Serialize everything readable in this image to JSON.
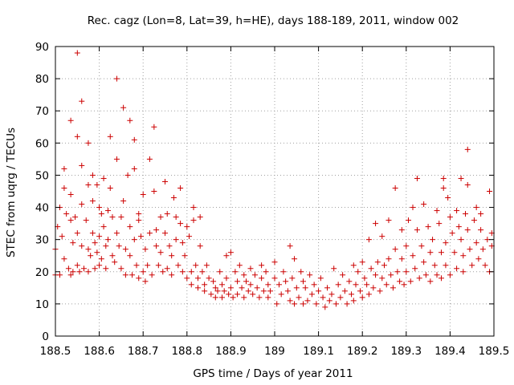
{
  "chart_data": {
    "type": "scatter",
    "title": "Rec. cagz (Lon=8, Lat=39, h=HE), days 188-189, 2011, window 002",
    "xlabel": "GPS time / Days of year 2011",
    "ylabel": "STEC from uqrg / TECUs",
    "xlim": [
      188.5,
      189.5
    ],
    "ylim": [
      0,
      90
    ],
    "xticks": [
      188.5,
      188.6,
      188.7,
      188.8,
      188.9,
      189,
      189.1,
      189.2,
      189.3,
      189.4,
      189.5
    ],
    "xtick_labels": [
      "188.5",
      "188.6",
      "188.7",
      "188.8",
      "188.9",
      "189",
      "189.1",
      "189.2",
      "189.3",
      "189.4",
      "189.5"
    ],
    "yticks": [
      0,
      10,
      20,
      30,
      40,
      50,
      60,
      70,
      80,
      90
    ],
    "ytick_labels": [
      "0",
      "10",
      "20",
      "30",
      "40",
      "50",
      "60",
      "70",
      "80",
      "90"
    ],
    "grid": true,
    "marker": "+",
    "color": "#cc0000",
    "series": [
      {
        "name": "STEC",
        "points": [
          [
            188.5,
            27
          ],
          [
            188.5,
            19
          ],
          [
            188.505,
            34
          ],
          [
            188.51,
            40
          ],
          [
            188.51,
            19
          ],
          [
            188.515,
            31
          ],
          [
            188.52,
            46
          ],
          [
            188.52,
            52
          ],
          [
            188.52,
            24
          ],
          [
            188.525,
            38
          ],
          [
            188.53,
            21
          ],
          [
            188.535,
            67
          ],
          [
            188.535,
            44
          ],
          [
            188.535,
            36
          ],
          [
            188.535,
            19
          ],
          [
            188.54,
            29
          ],
          [
            188.54,
            20
          ],
          [
            188.545,
            37
          ],
          [
            188.55,
            88
          ],
          [
            188.55,
            62
          ],
          [
            188.55,
            32
          ],
          [
            188.55,
            22
          ],
          [
            188.555,
            20
          ],
          [
            188.56,
            73
          ],
          [
            188.56,
            53
          ],
          [
            188.56,
            41
          ],
          [
            188.56,
            28
          ],
          [
            188.565,
            21
          ],
          [
            188.57,
            36
          ],
          [
            188.575,
            60
          ],
          [
            188.575,
            47
          ],
          [
            188.575,
            27
          ],
          [
            188.575,
            20
          ],
          [
            188.58,
            25
          ],
          [
            188.585,
            50
          ],
          [
            188.585,
            42
          ],
          [
            188.585,
            32
          ],
          [
            188.59,
            29
          ],
          [
            188.59,
            21
          ],
          [
            188.595,
            47
          ],
          [
            188.595,
            26
          ],
          [
            188.6,
            40
          ],
          [
            188.6,
            31
          ],
          [
            188.6,
            22
          ],
          [
            188.605,
            38
          ],
          [
            188.605,
            24
          ],
          [
            188.61,
            49
          ],
          [
            188.61,
            34
          ],
          [
            188.615,
            28
          ],
          [
            188.615,
            21
          ],
          [
            188.62,
            39
          ],
          [
            188.62,
            30
          ],
          [
            188.625,
            62
          ],
          [
            188.625,
            46
          ],
          [
            188.63,
            37
          ],
          [
            188.63,
            25
          ],
          [
            188.635,
            23
          ],
          [
            188.64,
            80
          ],
          [
            188.64,
            55
          ],
          [
            188.64,
            32
          ],
          [
            188.645,
            28
          ],
          [
            188.65,
            37
          ],
          [
            188.65,
            21
          ],
          [
            188.655,
            71
          ],
          [
            188.655,
            42
          ],
          [
            188.66,
            27
          ],
          [
            188.66,
            19
          ],
          [
            188.665,
            50
          ],
          [
            188.67,
            67
          ],
          [
            188.67,
            34
          ],
          [
            188.67,
            25
          ],
          [
            188.675,
            19
          ],
          [
            188.68,
            61
          ],
          [
            188.68,
            52
          ],
          [
            188.68,
            30
          ],
          [
            188.685,
            22
          ],
          [
            188.69,
            38
          ],
          [
            188.69,
            36
          ],
          [
            188.69,
            18
          ],
          [
            188.695,
            31
          ],
          [
            188.7,
            44
          ],
          [
            188.7,
            20
          ],
          [
            188.705,
            27
          ],
          [
            188.705,
            17
          ],
          [
            188.71,
            22
          ],
          [
            188.715,
            55
          ],
          [
            188.715,
            32
          ],
          [
            188.72,
            19
          ],
          [
            188.725,
            65
          ],
          [
            188.725,
            45
          ],
          [
            188.73,
            33
          ],
          [
            188.73,
            28
          ],
          [
            188.735,
            22
          ],
          [
            188.74,
            37
          ],
          [
            188.74,
            26
          ],
          [
            188.745,
            20
          ],
          [
            188.75,
            48
          ],
          [
            188.75,
            32
          ],
          [
            188.755,
            38
          ],
          [
            188.755,
            21
          ],
          [
            188.76,
            28
          ],
          [
            188.765,
            25
          ],
          [
            188.765,
            19
          ],
          [
            188.77,
            43
          ],
          [
            188.775,
            37
          ],
          [
            188.775,
            30
          ],
          [
            188.78,
            22
          ],
          [
            188.785,
            46
          ],
          [
            188.785,
            35
          ],
          [
            188.79,
            29
          ],
          [
            188.79,
            20
          ],
          [
            188.795,
            25
          ],
          [
            188.8,
            34
          ],
          [
            188.8,
            18
          ],
          [
            188.805,
            31
          ],
          [
            188.81,
            20
          ],
          [
            188.81,
            16
          ],
          [
            188.815,
            40
          ],
          [
            188.815,
            36
          ],
          [
            188.82,
            22
          ],
          [
            188.825,
            18
          ],
          [
            188.825,
            15
          ],
          [
            188.83,
            37
          ],
          [
            188.83,
            28
          ],
          [
            188.835,
            20
          ],
          [
            188.84,
            16
          ],
          [
            188.84,
            14
          ],
          [
            188.845,
            22
          ],
          [
            188.85,
            18
          ],
          [
            188.855,
            13
          ],
          [
            188.86,
            17
          ],
          [
            188.865,
            15
          ],
          [
            188.865,
            12
          ],
          [
            188.87,
            14
          ],
          [
            188.875,
            20
          ],
          [
            188.88,
            16
          ],
          [
            188.88,
            12
          ],
          [
            188.885,
            14
          ],
          [
            188.89,
            25
          ],
          [
            188.89,
            18
          ],
          [
            188.895,
            13
          ],
          [
            188.9,
            26
          ],
          [
            188.9,
            15
          ],
          [
            188.905,
            12
          ],
          [
            188.91,
            20
          ],
          [
            188.915,
            17
          ],
          [
            188.915,
            13
          ],
          [
            188.92,
            22
          ],
          [
            188.925,
            15
          ],
          [
            188.93,
            19
          ],
          [
            188.93,
            12
          ],
          [
            188.935,
            17
          ],
          [
            188.94,
            14
          ],
          [
            188.945,
            21
          ],
          [
            188.945,
            16
          ],
          [
            188.95,
            13
          ],
          [
            188.955,
            19
          ],
          [
            188.96,
            15
          ],
          [
            188.965,
            12
          ],
          [
            188.97,
            22
          ],
          [
            188.97,
            18
          ],
          [
            188.975,
            14
          ],
          [
            188.98,
            20
          ],
          [
            188.985,
            16
          ],
          [
            188.985,
            12
          ],
          [
            188.99,
            14
          ],
          [
            189.0,
            23
          ],
          [
            189.0,
            18
          ],
          [
            189.005,
            10
          ],
          [
            189.01,
            16
          ],
          [
            189.015,
            13
          ],
          [
            189.02,
            20
          ],
          [
            189.025,
            17
          ],
          [
            189.03,
            14
          ],
          [
            189.035,
            28
          ],
          [
            189.035,
            11
          ],
          [
            189.04,
            18
          ],
          [
            189.045,
            24
          ],
          [
            189.045,
            10
          ],
          [
            189.05,
            15
          ],
          [
            189.055,
            12
          ],
          [
            189.06,
            20
          ],
          [
            189.065,
            17
          ],
          [
            189.065,
            10
          ],
          [
            189.07,
            15
          ],
          [
            189.075,
            11
          ],
          [
            189.08,
            19
          ],
          [
            189.085,
            13
          ],
          [
            189.09,
            16
          ],
          [
            189.095,
            10
          ],
          [
            189.1,
            14
          ],
          [
            189.105,
            18
          ],
          [
            189.11,
            12
          ],
          [
            189.115,
            9
          ],
          [
            189.12,
            15
          ],
          [
            189.125,
            11
          ],
          [
            189.13,
            13
          ],
          [
            189.135,
            21
          ],
          [
            189.14,
            10
          ],
          [
            189.145,
            16
          ],
          [
            189.15,
            12
          ],
          [
            189.155,
            19
          ],
          [
            189.16,
            14
          ],
          [
            189.165,
            10
          ],
          [
            189.17,
            17
          ],
          [
            189.175,
            13
          ],
          [
            189.18,
            22
          ],
          [
            189.18,
            11
          ],
          [
            189.185,
            16
          ],
          [
            189.19,
            20
          ],
          [
            189.195,
            14
          ],
          [
            189.2,
            23
          ],
          [
            189.2,
            12
          ],
          [
            189.205,
            18
          ],
          [
            189.21,
            16
          ],
          [
            189.215,
            30
          ],
          [
            189.215,
            13
          ],
          [
            189.22,
            21
          ],
          [
            189.225,
            15
          ],
          [
            189.23,
            35
          ],
          [
            189.23,
            19
          ],
          [
            189.235,
            23
          ],
          [
            189.24,
            14
          ],
          [
            189.245,
            31
          ],
          [
            189.245,
            18
          ],
          [
            189.25,
            22
          ],
          [
            189.255,
            16
          ],
          [
            189.26,
            36
          ],
          [
            189.26,
            24
          ],
          [
            189.265,
            19
          ],
          [
            189.27,
            15
          ],
          [
            189.275,
            46
          ],
          [
            189.275,
            27
          ],
          [
            189.28,
            20
          ],
          [
            189.285,
            17
          ],
          [
            189.29,
            33
          ],
          [
            189.29,
            24
          ],
          [
            189.295,
            16
          ],
          [
            189.3,
            28
          ],
          [
            189.3,
            20
          ],
          [
            189.305,
            36
          ],
          [
            189.31,
            17
          ],
          [
            189.315,
            40
          ],
          [
            189.315,
            25
          ],
          [
            189.32,
            21
          ],
          [
            189.325,
            33
          ],
          [
            189.325,
            49
          ],
          [
            189.33,
            18
          ],
          [
            189.335,
            28
          ],
          [
            189.34,
            41
          ],
          [
            189.34,
            23
          ],
          [
            189.345,
            19
          ],
          [
            189.35,
            34
          ],
          [
            189.355,
            26
          ],
          [
            189.355,
            17
          ],
          [
            189.36,
            30
          ],
          [
            189.365,
            22
          ],
          [
            189.37,
            39
          ],
          [
            189.37,
            19
          ],
          [
            189.375,
            35
          ],
          [
            189.38,
            26
          ],
          [
            189.38,
            18
          ],
          [
            189.385,
            46
          ],
          [
            189.385,
            49
          ],
          [
            189.39,
            29
          ],
          [
            189.39,
            22
          ],
          [
            189.395,
            43
          ],
          [
            189.4,
            37
          ],
          [
            189.4,
            19
          ],
          [
            189.405,
            32
          ],
          [
            189.41,
            26
          ],
          [
            189.415,
            39
          ],
          [
            189.415,
            21
          ],
          [
            189.42,
            34
          ],
          [
            189.425,
            49
          ],
          [
            189.425,
            30
          ],
          [
            189.43,
            25
          ],
          [
            189.43,
            20
          ],
          [
            189.435,
            38
          ],
          [
            189.44,
            58
          ],
          [
            189.44,
            47
          ],
          [
            189.44,
            33
          ],
          [
            189.445,
            27
          ],
          [
            189.45,
            22
          ],
          [
            189.455,
            36
          ],
          [
            189.46,
            40
          ],
          [
            189.46,
            29
          ],
          [
            189.465,
            24
          ],
          [
            189.47,
            38
          ],
          [
            189.47,
            33
          ],
          [
            189.475,
            27
          ],
          [
            189.48,
            22
          ],
          [
            189.485,
            30
          ],
          [
            189.49,
            45
          ],
          [
            189.49,
            20
          ],
          [
            189.495,
            28
          ],
          [
            189.495,
            32
          ]
        ]
      }
    ]
  }
}
